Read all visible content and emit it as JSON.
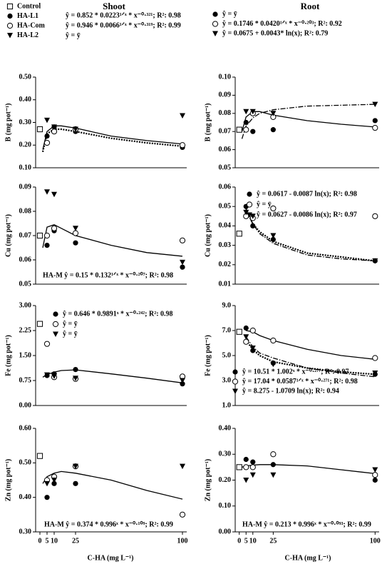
{
  "columns": [
    "Shoot",
    "Root"
  ],
  "x_label": "C-HA (mg L⁻¹)",
  "legend": [
    {
      "name": "Control",
      "marker": "square-open"
    },
    {
      "name": "HA-L1",
      "marker": "circle-filled"
    },
    {
      "name": "HA-Com",
      "marker": "circle-open"
    },
    {
      "name": "HA-L2",
      "marker": "triangle-filled"
    }
  ],
  "chart_data": [
    {
      "type": "scatter",
      "y_label": "B (mg pot⁻¹)",
      "xlim": [
        -3,
        103
      ],
      "ylim": [
        0.1,
        0.5
      ],
      "yticks": [
        {
          "value": 0.1,
          "label": "0.10"
        },
        {
          "value": 0.2,
          "label": "0.20"
        },
        {
          "value": 0.3,
          "label": "0.30"
        },
        {
          "value": 0.4,
          "label": "0.40"
        },
        {
          "value": 0.5,
          "label": "0.50"
        }
      ],
      "series": [
        {
          "marker": "square-open",
          "x": [
            0
          ],
          "values": [
            0.27
          ]
        },
        {
          "marker": "circle-filled",
          "x": [
            5,
            10,
            25,
            100
          ],
          "values": [
            0.24,
            0.28,
            0.26,
            0.19
          ]
        },
        {
          "marker": "circle-open",
          "x": [
            5,
            10,
            25,
            100
          ],
          "values": [
            0.21,
            0.26,
            0.27,
            0.2
          ]
        },
        {
          "marker": "triangle-filled",
          "x": [
            5,
            10,
            25,
            100
          ],
          "values": [
            0.31,
            0.28,
            0.27,
            0.33
          ]
        }
      ],
      "fits": [
        {
          "style": "solid",
          "x": [
            2,
            5,
            10,
            15,
            25,
            50,
            75,
            100
          ],
          "values": [
            0.18,
            0.26,
            0.285,
            0.285,
            0.275,
            0.24,
            0.22,
            0.205
          ]
        },
        {
          "style": "dotted",
          "x": [
            2,
            5,
            10,
            15,
            25,
            50,
            75,
            100
          ],
          "values": [
            0.17,
            0.25,
            0.27,
            0.27,
            0.26,
            0.23,
            0.21,
            0.195
          ]
        }
      ],
      "equations": [
        {
          "text": "ŷ = 0.852 * 0.0223¹ᐟˣ * x⁻⁰·³²¹; R²: 0.98"
        },
        {
          "text": "ŷ = 0.946 * 0.0066¹ᐟˣ * x⁻⁰·³¹⁹; R²: 0.99"
        },
        {
          "text": "ŷ = ȳ"
        }
      ]
    },
    {
      "type": "scatter",
      "y_label": "B (mg pot⁻¹)",
      "xlim": [
        -3,
        103
      ],
      "ylim": [
        0.05,
        0.1
      ],
      "yticks": [
        0.05,
        0.06,
        0.07,
        0.08,
        0.09,
        {
          "value": 0.1,
          "label": "0.10"
        }
      ],
      "series": [
        {
          "marker": "square-open",
          "x": [
            0
          ],
          "values": [
            0.071
          ]
        },
        {
          "marker": "circle-filled",
          "x": [
            5,
            10,
            25,
            100
          ],
          "values": [
            0.075,
            0.07,
            0.071,
            0.076
          ]
        },
        {
          "marker": "circle-open",
          "x": [
            5,
            10,
            25,
            100
          ],
          "values": [
            0.071,
            0.08,
            0.078,
            0.072
          ]
        },
        {
          "marker": "triangle-filled",
          "x": [
            5,
            10,
            25,
            100
          ],
          "values": [
            0.081,
            0.081,
            0.08,
            0.085
          ]
        }
      ],
      "fits": [
        {
          "style": "solid",
          "x": [
            2,
            5,
            10,
            15,
            25,
            50,
            75,
            100
          ],
          "values": [
            0.07,
            0.078,
            0.081,
            0.081,
            0.079,
            0.076,
            0.074,
            0.0725
          ]
        },
        {
          "style": "dashdot",
          "x": [
            2,
            5,
            10,
            15,
            25,
            50,
            75,
            100
          ],
          "values": [
            0.066,
            0.073,
            0.0775,
            0.08,
            0.082,
            0.084,
            0.0845,
            0.085
          ]
        }
      ],
      "equations": [
        {
          "marker": "circle-filled",
          "text": "ŷ = ȳ"
        },
        {
          "marker": "circle-open",
          "text": "ŷ = 0.1746 * 0.0420¹ᐟˣ * x⁻⁰·²⁰³; R²: 0.92"
        },
        {
          "marker": "triangle-filled",
          "text": "ŷ = 0.0675 + 0.0043* ln(x); R²: 0.79"
        }
      ]
    },
    {
      "type": "scatter",
      "y_label": "Cu (mg pot⁻¹)",
      "xlim": [
        -3,
        103
      ],
      "ylim": [
        0.05,
        0.09
      ],
      "yticks": [
        0.05,
        0.06,
        0.07,
        0.08,
        0.09
      ],
      "series": [
        {
          "marker": "square-open",
          "x": [
            0
          ],
          "values": [
            0.07
          ]
        },
        {
          "marker": "circle-filled",
          "x": [
            5,
            10,
            25,
            100
          ],
          "values": [
            0.066,
            0.072,
            0.067,
            0.057
          ]
        },
        {
          "marker": "circle-open",
          "x": [
            5,
            10,
            25,
            100
          ],
          "values": [
            0.07,
            0.073,
            0.071,
            0.068
          ]
        },
        {
          "marker": "triangle-filled",
          "x": [
            5,
            10,
            25,
            100
          ],
          "values": [
            0.088,
            0.087,
            0.073,
            0.059
          ]
        }
      ],
      "fits": [
        {
          "style": "solid",
          "x": [
            2,
            5,
            10,
            15,
            25,
            50,
            75,
            100
          ],
          "values": [
            0.065,
            0.0735,
            0.0745,
            0.073,
            0.07,
            0.066,
            0.063,
            0.0615
          ]
        }
      ],
      "equations": [
        {
          "text": "HA-M  ŷ = 0.15 * 0.132¹ᐟˣ * x⁻⁰·²⁰⁷; R²: 0.98"
        }
      ]
    },
    {
      "type": "scatter",
      "y_label": "Cu (mg pot⁻¹)",
      "xlim": [
        -3,
        103
      ],
      "ylim": [
        0.01,
        0.06
      ],
      "yticks": [
        0.01,
        0.02,
        0.03,
        0.04,
        0.05,
        0.06
      ],
      "series": [
        {
          "marker": "square-open",
          "x": [
            0
          ],
          "values": [
            0.036
          ]
        },
        {
          "marker": "circle-filled",
          "x": [
            5,
            10,
            25,
            100
          ],
          "values": [
            0.05,
            0.04,
            0.033,
            0.022
          ]
        },
        {
          "marker": "circle-open",
          "x": [
            5,
            10,
            25,
            100
          ],
          "values": [
            0.045,
            0.044,
            0.049,
            0.045
          ]
        },
        {
          "marker": "triangle-filled",
          "x": [
            5,
            10,
            25,
            100
          ],
          "values": [
            0.047,
            0.045,
            0.035,
            0.022
          ]
        }
      ],
      "fits": [
        {
          "style": "dotted",
          "x": [
            5,
            10,
            15,
            25,
            50,
            75,
            100
          ],
          "values": [
            0.049,
            0.041,
            0.037,
            0.032,
            0.026,
            0.024,
            0.022
          ]
        },
        {
          "style": "dashdot",
          "x": [
            5,
            10,
            15,
            25,
            50,
            75,
            100
          ],
          "values": [
            0.048,
            0.041,
            0.036,
            0.031,
            0.025,
            0.023,
            0.022
          ]
        }
      ],
      "equations": [
        {
          "marker": "circle-filled",
          "text": "ŷ = 0.0617 - 0.0087 ln(x); R²: 0.98"
        },
        {
          "marker": "circle-open",
          "text": "ŷ = ȳ"
        },
        {
          "marker": "triangle-filled",
          "text": "ŷ = 0.0627 - 0.0086 ln(x); R²: 0.97"
        }
      ]
    },
    {
      "type": "scatter",
      "y_label": "Fe (mg pot⁻¹)",
      "xlim": [
        -3,
        103
      ],
      "ylim": [
        0,
        3
      ],
      "yticks": [
        {
          "value": 0,
          "label": "0.00"
        },
        0.75,
        {
          "value": 1.5,
          "label": "1.50"
        },
        2.25,
        {
          "value": 3,
          "label": "3.00"
        }
      ],
      "series": [
        {
          "marker": "square-open",
          "x": [
            0
          ],
          "values": [
            2.45
          ]
        },
        {
          "marker": "circle-filled",
          "x": [
            5,
            10,
            25,
            100
          ],
          "values": [
            0.9,
            0.95,
            1.08,
            0.65
          ]
        },
        {
          "marker": "circle-open",
          "x": [
            5,
            10,
            25,
            100
          ],
          "values": [
            1.85,
            0.85,
            0.8,
            0.87
          ]
        },
        {
          "marker": "triangle-filled",
          "x": [
            5,
            10,
            25,
            100
          ],
          "values": [
            0.92,
            0.88,
            0.82,
            0.75
          ]
        }
      ],
      "fits": [
        {
          "style": "solid",
          "x": [
            2,
            5,
            10,
            15,
            25,
            50,
            75,
            100
          ],
          "values": [
            0.85,
            0.93,
            1,
            1.05,
            1.07,
            0.95,
            0.82,
            0.68
          ]
        }
      ],
      "equations": [
        {
          "marker": "circle-filled",
          "text": "ŷ = 0.646 * 0.9891ˣ * x⁻⁰·²⁴²; R²: 0.98"
        },
        {
          "marker": "circle-open",
          "text": "ŷ = ȳ"
        },
        {
          "marker": "triangle-filled",
          "text": "ŷ = ȳ"
        }
      ]
    },
    {
      "type": "scatter",
      "y_label": "Fe (mg pot⁻¹)",
      "xlim": [
        -3,
        103
      ],
      "ylim": [
        1,
        9
      ],
      "yticks": [
        {
          "value": 1,
          "label": "1.0"
        },
        {
          "value": 3,
          "label": "3.0"
        },
        {
          "value": 5,
          "label": "5.0"
        },
        {
          "value": 7,
          "label": "7.0"
        },
        {
          "value": 9,
          "label": "9.0"
        }
      ],
      "series": [
        {
          "marker": "square-open",
          "x": [
            0
          ],
          "values": [
            6.9
          ]
        },
        {
          "marker": "circle-filled",
          "x": [
            5,
            10,
            25,
            100
          ],
          "values": [
            7.2,
            5.4,
            4.4,
            3.5
          ]
        },
        {
          "marker": "circle-open",
          "x": [
            5,
            10,
            25,
            100
          ],
          "values": [
            6.1,
            7,
            6.2,
            4.8
          ]
        },
        {
          "marker": "triangle-filled",
          "x": [
            5,
            10,
            25,
            100
          ],
          "values": [
            6.5,
            5.6,
            4.3,
            3.6
          ]
        }
      ],
      "fits": [
        {
          "style": "solid",
          "x": [
            5,
            10,
            15,
            25,
            50,
            75,
            100
          ],
          "values": [
            7,
            6.9,
            6.6,
            6.2,
            5.5,
            5,
            4.7
          ]
        },
        {
          "style": "dotted",
          "x": [
            5,
            10,
            15,
            25,
            50,
            75,
            100
          ],
          "values": [
            6.2,
            5.5,
            5,
            4.5,
            4,
            3.7,
            3.5
          ]
        },
        {
          "style": "dashdot",
          "x": [
            5,
            10,
            15,
            25,
            50,
            75,
            100
          ],
          "values": [
            6.5,
            5.7,
            5.2,
            4.8,
            4,
            3.6,
            3.3
          ]
        }
      ],
      "equations": [
        {
          "marker": "circle-filled",
          "text": "ŷ = 10.51 * 1.002ˣ * x⁻⁰·²⁷⁷; R²: 0.97"
        },
        {
          "marker": "circle-open",
          "text": "ŷ = 17.04 * 0.0587¹ᐟˣ * x⁻⁰·²⁷¹; R²: 0.98"
        },
        {
          "marker": "triangle-filled",
          "text": "ŷ = 8.275 - 1.0709 ln(x); R²: 0.94"
        }
      ]
    },
    {
      "type": "scatter",
      "y_label": "Zn (mg pot⁻¹)",
      "xlim": [
        -3,
        103
      ],
      "ylim": [
        0.3,
        0.6
      ],
      "yticks": [
        {
          "value": 0.3,
          "label": "0.30"
        },
        {
          "value": 0.4,
          "label": "0.40"
        },
        {
          "value": 0.5,
          "label": "0.50"
        },
        {
          "value": 0.6,
          "label": "0.60"
        }
      ],
      "xticks": [
        0,
        5,
        10,
        25,
        100
      ],
      "series": [
        {
          "marker": "square-open",
          "x": [
            0
          ],
          "values": [
            0.52
          ]
        },
        {
          "marker": "circle-filled",
          "x": [
            5,
            10,
            25,
            100
          ],
          "values": [
            0.4,
            0.44,
            0.44,
            0.35
          ]
        },
        {
          "marker": "circle-open",
          "x": [
            5,
            10,
            25,
            100
          ],
          "values": [
            0.45,
            0.46,
            0.49,
            0.35
          ]
        },
        {
          "marker": "triangle-filled",
          "x": [
            5,
            10,
            25,
            100
          ],
          "values": [
            0.44,
            0.45,
            0.49,
            0.49
          ]
        }
      ],
      "fits": [
        {
          "style": "solid",
          "x": [
            2,
            5,
            10,
            15,
            25,
            50,
            75,
            100
          ],
          "values": [
            0.44,
            0.46,
            0.47,
            0.475,
            0.47,
            0.45,
            0.42,
            0.395
          ]
        }
      ],
      "equations": [
        {
          "text": "HA-M  ŷ = 0.374 * 0.996ˣ * x⁻⁰·¹⁰⁹; R²: 0.99"
        }
      ]
    },
    {
      "type": "scatter",
      "y_label": "Zn (mg pot⁻¹)",
      "xlim": [
        -3,
        103
      ],
      "ylim": [
        0,
        0.4
      ],
      "yticks": [
        {
          "value": 0,
          "label": "0.00"
        },
        {
          "value": 0.1,
          "label": "0.10"
        },
        {
          "value": 0.2,
          "label": "0.20"
        },
        {
          "value": 0.3,
          "label": "0.30"
        },
        {
          "value": 0.4,
          "label": "0.40"
        }
      ],
      "xticks": [
        0,
        5,
        10,
        25,
        100
      ],
      "series": [
        {
          "marker": "square-open",
          "x": [
            0
          ],
          "values": [
            0.25
          ]
        },
        {
          "marker": "circle-filled",
          "x": [
            5,
            10,
            25,
            100
          ],
          "values": [
            0.28,
            0.27,
            0.26,
            0.2
          ]
        },
        {
          "marker": "circle-open",
          "x": [
            5,
            10,
            25,
            100
          ],
          "values": [
            0.25,
            0.25,
            0.3,
            0.22
          ]
        },
        {
          "marker": "triangle-filled",
          "x": [
            5,
            10,
            25,
            100
          ],
          "values": [
            0.2,
            0.22,
            0.22,
            0.24
          ]
        }
      ],
      "fits": [
        {
          "style": "solid",
          "x": [
            2,
            5,
            10,
            15,
            25,
            50,
            75,
            100
          ],
          "values": [
            0.25,
            0.255,
            0.258,
            0.26,
            0.26,
            0.255,
            0.24,
            0.225
          ]
        }
      ],
      "equations": [
        {
          "text": "HA-M  ŷ = 0.213 * 0.996ˣ * x⁻⁰·⁰⁹³; R²: 0.99"
        }
      ]
    }
  ]
}
